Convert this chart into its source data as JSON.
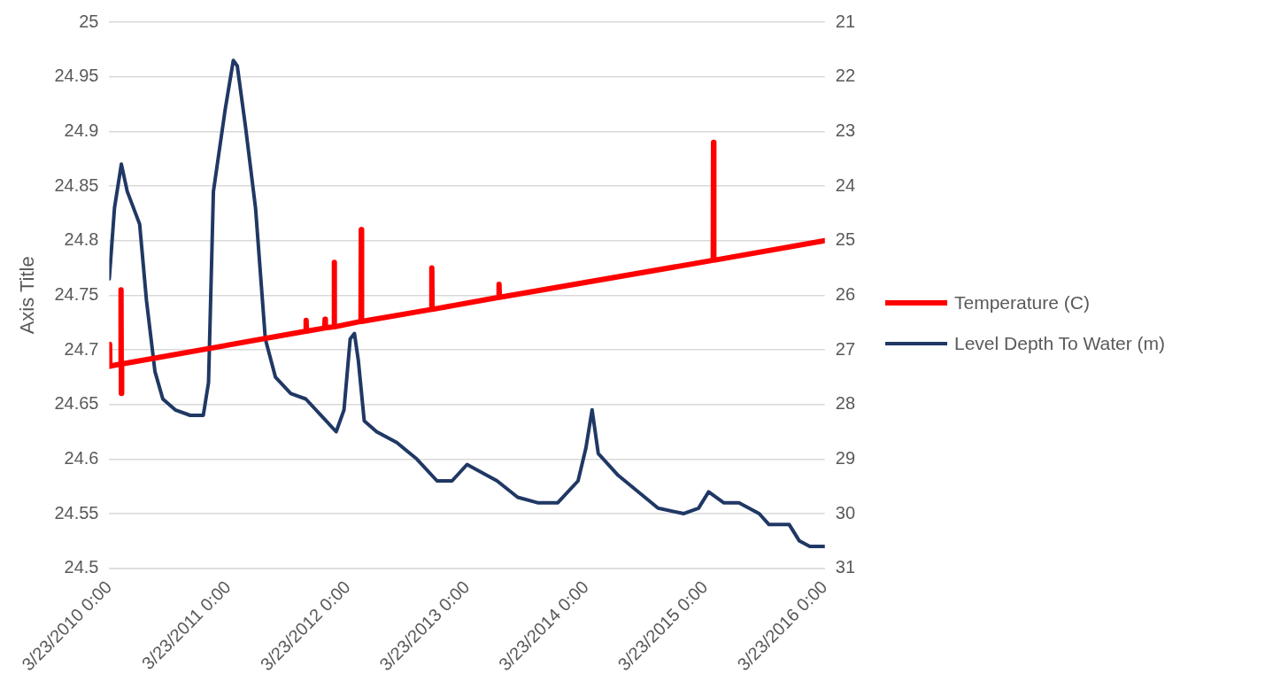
{
  "chart_data": {
    "type": "line",
    "ylabel": "Axis Title",
    "grid": "y",
    "legend": "right",
    "marker": "none",
    "line_style": "solid",
    "xlim": [
      "2010-03-23",
      "2016-03-23"
    ],
    "xticks": [
      {
        "value": "2010-03-23",
        "label": "3/23/2010 0:00"
      },
      {
        "value": "2011-03-23",
        "label": "3/23/2011 0:00"
      },
      {
        "value": "2012-03-23",
        "label": "3/23/2012 0:00"
      },
      {
        "value": "2013-03-23",
        "label": "3/23/2013 0:00"
      },
      {
        "value": "2014-03-23",
        "label": "3/23/2014 0:00"
      },
      {
        "value": "2015-03-23",
        "label": "3/23/2015 0:00"
      },
      {
        "value": "2016-03-23",
        "label": "3/23/2016 0:00"
      }
    ],
    "ylim": [
      24.5,
      25
    ],
    "yticks": [
      24.5,
      24.55,
      24.6,
      24.65,
      24.7,
      24.75,
      24.8,
      24.85,
      24.9,
      24.95,
      25
    ],
    "y2lim": [
      31,
      21
    ],
    "y2ticks": [
      21,
      22,
      23,
      24,
      25,
      26,
      27,
      28,
      29,
      30,
      31
    ],
    "series": [
      {
        "name": "Temperature (C)",
        "color": "#ff0000",
        "axis": "y",
        "x": [
          "2010-03-23",
          "2010-03-24",
          "2010-03-25",
          "2010-04-27",
          "2010-04-28",
          "2010-04-29",
          "2010-04-30",
          "2011-11-15",
          "2011-11-16",
          "2011-11-17",
          "2012-01-12",
          "2012-01-13",
          "2012-01-14",
          "2012-02-09",
          "2012-02-10",
          "2012-02-11",
          "2012-05-02",
          "2012-05-03",
          "2012-05-04",
          "2012-12-04",
          "2012-12-05",
          "2012-12-06",
          "2013-06-28",
          "2013-06-29",
          "2013-06-30",
          "2015-04-16",
          "2015-04-17",
          "2015-04-18",
          "2016-03-23"
        ],
        "values": [
          24.685,
          24.705,
          24.685,
          24.687,
          24.755,
          24.66,
          24.687,
          24.717,
          24.727,
          24.717,
          24.72,
          24.728,
          24.72,
          24.721,
          24.78,
          24.721,
          24.726,
          24.81,
          24.726,
          24.737,
          24.775,
          24.737,
          24.748,
          24.76,
          24.748,
          24.782,
          24.89,
          24.782,
          24.8
        ]
      },
      {
        "name": "Level Depth To Water (m)",
        "color": "#203864",
        "axis": "y2",
        "x": [
          "2010-03-23",
          "2010-04-08",
          "2010-04-29",
          "2010-05-17",
          "2010-06-24",
          "2010-07-15",
          "2010-08-10",
          "2010-09-03",
          "2010-10-11",
          "2010-11-26",
          "2011-01-05",
          "2011-01-21",
          "2011-02-05",
          "2011-03-13",
          "2011-04-07",
          "2011-04-19",
          "2011-05-14",
          "2011-06-14",
          "2011-07-14",
          "2011-08-14",
          "2011-09-30",
          "2011-11-15",
          "2012-01-16",
          "2012-02-16",
          "2012-03-11",
          "2012-03-30",
          "2012-04-12",
          "2012-04-24",
          "2012-05-12",
          "2012-06-19",
          "2012-08-20",
          "2012-10-20",
          "2012-12-21",
          "2013-02-05",
          "2013-03-23",
          "2013-04-23",
          "2013-06-23",
          "2013-08-25",
          "2013-10-25",
          "2013-12-26",
          "2014-02-26",
          "2014-03-22",
          "2014-04-10",
          "2014-04-29",
          "2014-06-29",
          "2014-08-29",
          "2014-10-29",
          "2015-01-16",
          "2015-03-02",
          "2015-04-02",
          "2015-05-18",
          "2015-07-04",
          "2015-09-04",
          "2015-10-04",
          "2015-11-04",
          "2015-12-05",
          "2016-01-05",
          "2016-02-06",
          "2016-03-23"
        ],
        "values": [
          25.7,
          24.4,
          23.6,
          24.1,
          24.7,
          26.1,
          27.4,
          27.9,
          28.1,
          28.2,
          28.2,
          27.6,
          24.1,
          22.6,
          21.7,
          21.8,
          22.9,
          24.4,
          26.8,
          27.5,
          27.8,
          27.9,
          28.3,
          28.5,
          28.1,
          26.8,
          26.7,
          27.2,
          28.3,
          28.5,
          28.7,
          29.0,
          29.4,
          29.4,
          29.1,
          29.2,
          29.4,
          29.7,
          29.8,
          29.8,
          29.4,
          28.8,
          28.1,
          28.9,
          29.3,
          29.6,
          29.9,
          30.0,
          29.9,
          29.6,
          29.8,
          29.8,
          30.0,
          30.2,
          30.2,
          30.2,
          30.5,
          30.6,
          30.6
        ]
      }
    ]
  }
}
